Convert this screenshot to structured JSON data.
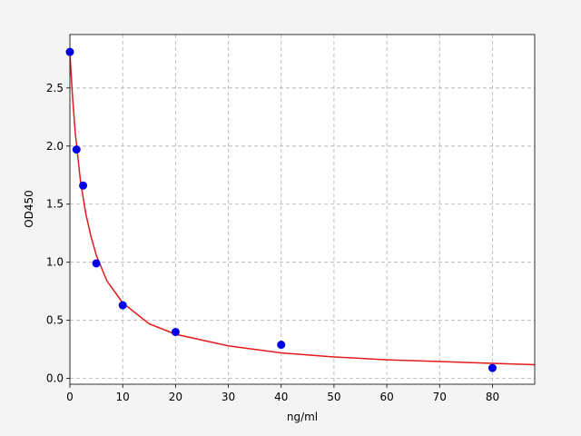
{
  "chart_data": {
    "type": "scatter",
    "xlabel": "ng/ml",
    "ylabel": "OD450",
    "xlim": [
      0,
      88
    ],
    "ylim": [
      -0.05,
      2.96
    ],
    "xticks": [
      0,
      10,
      20,
      30,
      40,
      50,
      60,
      70,
      80
    ],
    "yticks": [
      {
        "value": 0,
        "label": "0.0"
      },
      0.5,
      {
        "value": 1,
        "label": "1.0"
      },
      1.5,
      {
        "value": 2,
        "label": "2.0"
      },
      2.5
    ],
    "grid": true,
    "series": [
      {
        "type": "line",
        "color": "#e41a1c",
        "x": [
          0,
          0.5,
          1,
          2,
          3,
          4,
          5,
          7,
          10,
          15,
          20,
          30,
          40,
          50,
          60,
          70,
          80,
          88
        ],
        "values": [
          2.8,
          2.42,
          2.12,
          1.7,
          1.42,
          1.22,
          1.06,
          0.84,
          0.65,
          0.47,
          0.38,
          0.28,
          0.22,
          0.185,
          0.16,
          0.145,
          0.13,
          0.118
        ]
      },
      {
        "type": "scatter",
        "color": "#0000e6",
        "x": [
          0,
          1.25,
          2.5,
          5,
          10,
          20,
          40,
          80
        ],
        "values": [
          2.81,
          1.97,
          1.66,
          0.99,
          0.63,
          0.4,
          0.29,
          0.09
        ]
      }
    ]
  }
}
